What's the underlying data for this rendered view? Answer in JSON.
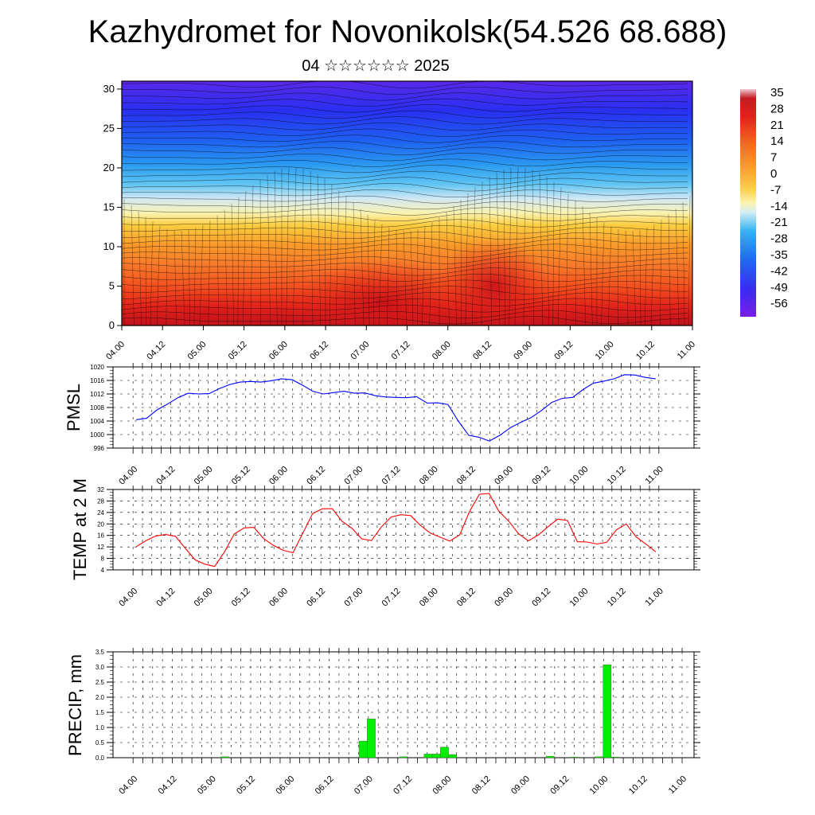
{
  "title": "Kazhydromet for Novonikolsk(54.526 68.688)",
  "subtitle": "04 ☆☆☆☆☆☆ 2025",
  "colorbar": {
    "labels": [
      "35",
      "28",
      "21",
      "14",
      "7",
      "0",
      "-7",
      "-14",
      "-21",
      "-28",
      "-35",
      "-42",
      "-49",
      "-56"
    ],
    "colors": [
      "#b000f0",
      "#6a28f0",
      "#2d2ff0",
      "#1f5ff0",
      "#2a98f0",
      "#6ccaf2",
      "#d4ecf4",
      "#fbf3b0",
      "#fbd24a",
      "#f9a42a",
      "#f77a20",
      "#f2461c",
      "#dd1a1a",
      "#b10f14"
    ]
  },
  "chart_data": [
    {
      "type": "heatmap",
      "title": "Kazhydromet for Novonikolsk(54.526 68.688)",
      "subtitle": "04 ☆☆☆☆☆☆ 2025",
      "x_ticks": [
        "04.00",
        "04.12",
        "05.00",
        "05.12",
        "06.00",
        "06.12",
        "07.00",
        "07.12",
        "08.00",
        "08.12",
        "09.00",
        "09.12",
        "10.00",
        "10.12",
        "11.00"
      ],
      "y_ticks": [
        "0",
        "5",
        "10",
        "15",
        "20",
        "25",
        "30"
      ],
      "ylim": [
        0,
        31
      ],
      "legend": "colorbar right"
    },
    {
      "type": "line",
      "ylabel": "PMSL",
      "x_ticks": [
        "04.00",
        "04.12",
        "05.00",
        "05.12",
        "06.00",
        "06.12",
        "07.00",
        "07.12",
        "08.00",
        "08.12",
        "09.00",
        "09.12",
        "10.00",
        "10.12",
        "11.00"
      ],
      "y_ticks": [
        "996",
        "1000",
        "1004",
        "1008",
        "1012",
        "1016",
        "1020"
      ],
      "ylim": [
        996,
        1020
      ],
      "grid": true,
      "series": [
        {
          "color": "#0000ff",
          "values": [
            1004.4,
            1004.8,
            1007.3,
            1009.0,
            1010.9,
            1012.2,
            1012.0,
            1012.1,
            1013.6,
            1014.8,
            1015.5,
            1015.7,
            1015.5,
            1015.9,
            1016.5,
            1016.2,
            1014.6,
            1012.8,
            1012.0,
            1012.4,
            1012.8,
            1012.2,
            1012.3,
            1011.5,
            1011.1,
            1011.0,
            1010.9,
            1011.2,
            1009.3,
            1009.4,
            1008.9,
            1004.0,
            999.8,
            999.2,
            998.1,
            999.8,
            1002.0,
            1003.6,
            1005.0,
            1007.1,
            1009.5,
            1010.7,
            1011.0,
            1013.3,
            1015.2,
            1015.8,
            1016.5,
            1017.7,
            1017.6,
            1016.9,
            1016.5
          ]
        }
      ]
    },
    {
      "type": "line",
      "ylabel": "TEMP at 2 M",
      "x_ticks": [
        "04.00",
        "04.12",
        "05.00",
        "05.12",
        "06.00",
        "06.12",
        "07.00",
        "07.12",
        "08.00",
        "08.12",
        "09.00",
        "09.12",
        "10.00",
        "10.12",
        "11.00"
      ],
      "y_ticks": [
        "4",
        "8",
        "12",
        "16",
        "20",
        "24",
        "28",
        "32"
      ],
      "ylim": [
        4,
        32
      ],
      "grid": true,
      "series": [
        {
          "color": "#ff0000",
          "values": [
            12.1,
            14.2,
            15.8,
            16.3,
            15.7,
            11.5,
            7.5,
            6.0,
            5.2,
            10.2,
            16.5,
            18.6,
            18.8,
            14.9,
            12.5,
            10.8,
            10.0,
            16.8,
            23.6,
            25.3,
            25.3,
            20.9,
            18.5,
            14.8,
            14.2,
            18.9,
            22.4,
            23.2,
            22.9,
            19.5,
            16.8,
            15.4,
            14.0,
            16.2,
            24.3,
            30.3,
            30.6,
            24.4,
            21.0,
            16.6,
            14.1,
            16.1,
            19.0,
            21.7,
            21.2,
            13.8,
            13.7,
            13.0,
            13.6,
            18.0,
            20.0,
            15.5,
            13.0,
            10.3
          ]
        }
      ]
    },
    {
      "type": "bar",
      "ylabel": "PRECIP, mm",
      "x_ticks": [
        "04.00",
        "04.12",
        "05.00",
        "05.12",
        "06.00",
        "06.12",
        "07.00",
        "07.12",
        "08.00",
        "08.12",
        "09.00",
        "09.12",
        "10.00",
        "10.12",
        "11.00"
      ],
      "y_ticks": [
        "0.0",
        "0.5",
        "1.0",
        "1.5",
        "2.0",
        "2.5",
        "3.0",
        "3.5"
      ],
      "ylim": [
        0,
        3.5
      ],
      "grid": true,
      "series": [
        {
          "color": "#00ee00",
          "values": [
            0,
            0,
            0,
            0,
            0,
            0,
            0,
            0,
            0,
            0,
            0.03,
            0,
            0,
            0,
            0,
            0,
            0,
            0,
            0,
            0,
            0,
            0,
            0,
            0,
            0,
            0,
            0,
            0.55,
            1.28,
            0,
            0,
            0,
            0.03,
            0,
            0,
            0.12,
            0.12,
            0.35,
            0.1,
            0,
            0,
            0,
            0,
            0,
            0,
            0,
            0,
            0,
            0,
            0,
            0.05,
            0,
            0,
            0.02,
            0,
            0,
            0.03,
            3.07,
            0.02,
            0,
            0,
            0,
            0,
            0,
            0,
            0,
            0,
            0
          ]
        }
      ]
    }
  ]
}
